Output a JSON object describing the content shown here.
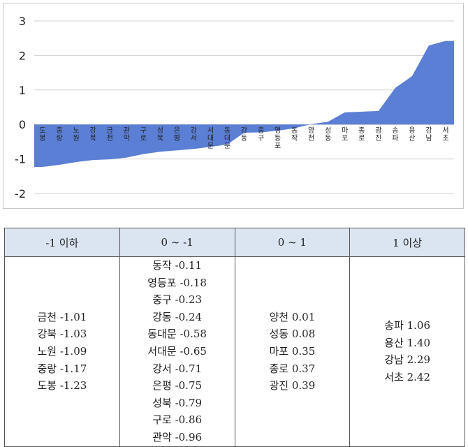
{
  "chart_data": {
    "type": "area",
    "categories": [
      "도봉",
      "중랑",
      "노원",
      "강북",
      "금천",
      "관악",
      "구로",
      "성북",
      "은평",
      "강서",
      "서대문",
      "동대문",
      "강동",
      "중구",
      "영등포",
      "동작",
      "양천",
      "성동",
      "마포",
      "종로",
      "광진",
      "송파",
      "용산",
      "강남",
      "서초"
    ],
    "values": [
      -1.23,
      -1.17,
      -1.09,
      -1.03,
      -1.01,
      -0.96,
      -0.86,
      -0.79,
      -0.75,
      -0.71,
      -0.65,
      -0.58,
      -0.24,
      -0.23,
      -0.18,
      -0.11,
      0.01,
      0.08,
      0.35,
      0.37,
      0.39,
      1.06,
      1.4,
      2.29,
      2.42
    ],
    "yticks": [
      "3",
      "2",
      "1",
      "0",
      "-1",
      "-2"
    ],
    "ylim": [
      -2,
      3
    ],
    "grid": true,
    "color": "#5b7fd4"
  },
  "table": {
    "headers": [
      "-1 이하",
      "0 ~ -1",
      "0 ~ 1",
      "1 이상"
    ],
    "columns": [
      [
        "금천 -1.01",
        "강북 -1.03",
        "노원 -1.09",
        "중랑 -1.17",
        "도봉 -1.23"
      ],
      [
        "동작 -0.11",
        "영등포 -0.18",
        "중구 -0.23",
        "강동 -0.24",
        "동대문 -0.58",
        "서대문 -0.65",
        "강서 -0.71",
        "은평 -0.75",
        "성북 -0.79",
        "구로 -0.86",
        "관악 -0.96"
      ],
      [
        "양천 0.01",
        "성동 0.08",
        "마포 0.35",
        "종로 0.37",
        "광진 0.39"
      ],
      [
        "송파 1.06",
        "용산 1.40",
        "강남 2.29",
        "서초 2.42"
      ]
    ]
  }
}
